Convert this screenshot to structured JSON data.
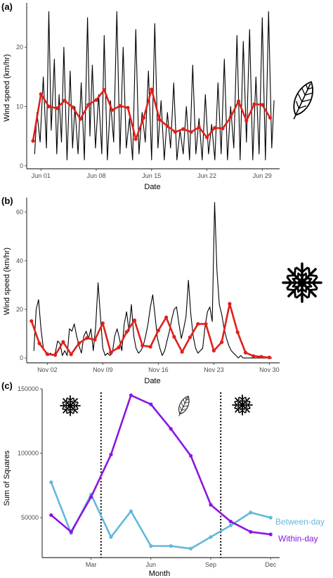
{
  "chart_data": [
    {
      "panel_label": "(a)",
      "type": "line",
      "xlabel": "Date",
      "ylabel": "Wind speed (km/hr)",
      "x_ticks": [
        "Jun 01",
        "Jun 08",
        "Jun 15",
        "Jun 22",
        "Jun 29"
      ],
      "x_tick_positions": [
        1,
        8,
        15,
        22,
        29
      ],
      "xlim": [
        -0.8,
        31.2
      ],
      "y_ticks": [
        0,
        10,
        20
      ],
      "ylim": [
        -0.5,
        27.5
      ],
      "icon": "leaf-icon",
      "series": [
        {
          "role": "hourly",
          "color": "#000000",
          "x": [
            0.2,
            0.5,
            0.9,
            1.3,
            1.7,
            2.0,
            2.3,
            2.7,
            3.0,
            3.3,
            3.6,
            3.9,
            4.3,
            4.7,
            5.0,
            5.3,
            5.7,
            6.1,
            6.5,
            6.9,
            7.2,
            7.5,
            7.9,
            8.3,
            8.7,
            9.0,
            9.4,
            9.8,
            10.2,
            10.6,
            11.0,
            11.4,
            11.8,
            12.2,
            12.6,
            13.0,
            13.4,
            13.8,
            14.2,
            14.6,
            15.0,
            15.4,
            15.8,
            16.2,
            16.6,
            17.0,
            17.4,
            17.8,
            18.2,
            18.6,
            19.0,
            19.4,
            19.8,
            20.2,
            20.6,
            21.0,
            21.4,
            21.8,
            22.2,
            22.6,
            23.0,
            23.4,
            23.8,
            24.2,
            24.6,
            25.0,
            25.4,
            25.8,
            26.2,
            26.6,
            27.0,
            27.4,
            27.8,
            28.2,
            28.6,
            29.0,
            29.4,
            29.8,
            30.2,
            30.5
          ],
          "y": [
            2,
            9,
            4,
            15,
            3,
            26,
            6,
            18,
            2,
            12,
            4,
            20,
            1,
            16,
            3,
            10,
            2,
            14,
            1,
            25,
            5,
            17,
            3,
            12,
            2,
            22,
            1,
            11,
            4,
            26,
            2,
            20,
            3,
            8,
            1,
            23,
            2,
            9,
            4,
            16,
            1,
            24,
            3,
            11,
            1,
            9,
            3,
            14,
            1,
            6,
            2,
            10,
            1,
            17,
            2,
            8,
            1,
            12,
            2,
            7,
            1,
            14,
            2,
            18,
            1,
            10,
            3,
            22,
            1,
            21,
            4,
            23,
            1,
            15,
            2,
            25,
            1,
            26,
            3,
            11
          ]
        },
        {
          "role": "daily_mean",
          "color": "#e0201b",
          "x": [
            0,
            1,
            2,
            3,
            4,
            5,
            6,
            7,
            8,
            9,
            10,
            11,
            12,
            13,
            14,
            15,
            16,
            17,
            18,
            19,
            20,
            21,
            22,
            23,
            24,
            25,
            26,
            27,
            28,
            29,
            30
          ],
          "y": [
            4.2,
            12.1,
            10,
            9.7,
            11,
            9.9,
            7.9,
            10.3,
            11.1,
            12.8,
            9.4,
            10.1,
            9.8,
            4.5,
            8.1,
            12.9,
            7.8,
            6.7,
            5.7,
            6.2,
            5.7,
            6.5,
            4.8,
            6.4,
            6.3,
            8.2,
            10.9,
            7.6,
            10.4,
            10.3,
            8.1
          ]
        }
      ]
    },
    {
      "panel_label": "(b)",
      "type": "line",
      "xlabel": "Date",
      "ylabel": "Wind speed (km/hr)",
      "x_ticks": [
        "Nov 02",
        "Nov 09",
        "Nov 16",
        "Nov 23",
        "Nov 30"
      ],
      "x_tick_positions": [
        2,
        9,
        16,
        23,
        30
      ],
      "xlim": [
        -0.6,
        31.3
      ],
      "y_ticks": [
        0,
        20,
        40,
        60
      ],
      "ylim": [
        -2,
        66
      ],
      "icon": "snowflake-icon",
      "series": [
        {
          "role": "hourly",
          "color": "#000000",
          "x": [
            0.3,
            0.6,
            0.9,
            1.2,
            1.5,
            1.8,
            2.1,
            2.4,
            2.7,
            3.0,
            3.3,
            3.6,
            3.9,
            4.2,
            4.5,
            4.8,
            5.1,
            5.4,
            5.7,
            6.0,
            6.3,
            6.6,
            6.9,
            7.2,
            7.5,
            7.8,
            8.1,
            8.4,
            8.7,
            9.0,
            9.3,
            9.6,
            9.9,
            10.2,
            10.5,
            10.8,
            11.1,
            11.4,
            11.7,
            12.0,
            12.3,
            12.6,
            12.9,
            13.2,
            13.5,
            13.8,
            14.1,
            14.4,
            14.7,
            15.0,
            15.3,
            15.6,
            15.9,
            16.2,
            16.5,
            16.8,
            17.1,
            17.4,
            17.7,
            18.0,
            18.3,
            18.6,
            18.9,
            19.2,
            19.5,
            19.8,
            20.1,
            20.4,
            20.7,
            21.0,
            21.3,
            21.6,
            21.9,
            22.2,
            22.5,
            22.8,
            23.1,
            23.4,
            23.7,
            24.0,
            24.3,
            24.6,
            24.9,
            25.2,
            25.5,
            25.8,
            26.1,
            26.4,
            26.7,
            27.0,
            27.3,
            27.6,
            27.9,
            28.2,
            28.5,
            28.8,
            29.1,
            29.4,
            29.7,
            30.0,
            30.3
          ],
          "y": [
            3,
            20,
            24,
            12,
            4,
            2,
            1,
            2,
            1,
            2,
            7,
            6,
            1,
            3,
            1,
            12,
            11,
            14,
            9,
            5,
            2,
            9,
            11,
            8,
            12,
            3,
            13,
            31,
            17,
            4,
            1,
            2,
            1,
            2,
            9,
            12,
            8,
            3,
            14,
            19,
            11,
            22,
            9,
            4,
            2,
            3,
            5,
            9,
            14,
            21,
            26,
            17,
            8,
            4,
            1,
            3,
            7,
            11,
            16,
            20,
            21,
            14,
            8,
            12,
            17,
            32,
            18,
            9,
            4,
            2,
            3,
            4,
            13,
            19,
            21,
            15,
            64,
            36,
            22,
            18,
            12,
            8,
            5,
            3,
            2,
            1,
            0,
            1,
            0,
            0,
            0,
            0,
            0,
            0,
            0,
            0,
            0,
            0,
            0,
            0,
            0
          ]
        },
        {
          "role": "daily_mean",
          "color": "#e0201b",
          "x": [
            0,
            1,
            2,
            3,
            4,
            5,
            6,
            7,
            8,
            9,
            10,
            11,
            12,
            13,
            14,
            15,
            16,
            17,
            18,
            19,
            20,
            21,
            22,
            23,
            24,
            25,
            26,
            27,
            28,
            29,
            30
          ],
          "y": [
            15.2,
            6,
            1.6,
            1.2,
            6.6,
            1.5,
            6.1,
            8.2,
            7.5,
            14.3,
            2.3,
            4.3,
            10.7,
            15.5,
            5.1,
            4.6,
            11.3,
            16.7,
            8.7,
            2.5,
            8.5,
            14,
            14,
            3,
            6.5,
            22.3,
            10.6,
            2.2,
            0.8,
            0.5,
            0.2
          ]
        }
      ]
    },
    {
      "panel_label": "(c)",
      "type": "line",
      "xlabel": "Month",
      "ylabel": "Sum of Squares",
      "x_ticks": [
        "Mar",
        "Jun",
        "Sep",
        "Dec"
      ],
      "x_tick_positions": [
        3,
        6,
        9,
        12
      ],
      "xlim": [
        0.55,
        12.45
      ],
      "y_ticks": [
        50000,
        100000,
        150000
      ],
      "ylim": [
        19000,
        150000
      ],
      "vlines": [
        3.5,
        9.5
      ],
      "icons": [
        {
          "name": "snowflake-icon",
          "x": 2
        },
        {
          "name": "leaf-icon",
          "x": 7.4
        },
        {
          "name": "snowflake-icon",
          "x": 11
        }
      ],
      "series": [
        {
          "name": "Between-day",
          "color": "#62b8db",
          "x": [
            1,
            2,
            3,
            4,
            5,
            6,
            7,
            8,
            9,
            10,
            11,
            12
          ],
          "y": [
            77500,
            38000,
            68000,
            35000,
            55000,
            28000,
            28000,
            26000,
            35000,
            44000,
            54000,
            50000
          ]
        },
        {
          "name": "Within-day",
          "color": "#8a17e0",
          "x": [
            1,
            2,
            3,
            4,
            5,
            6,
            7,
            8,
            9,
            10,
            11,
            12
          ],
          "y": [
            52000,
            39000,
            66000,
            99000,
            145000,
            138000,
            119000,
            98000,
            60000,
            47000,
            39000,
            37000
          ]
        }
      ]
    }
  ]
}
